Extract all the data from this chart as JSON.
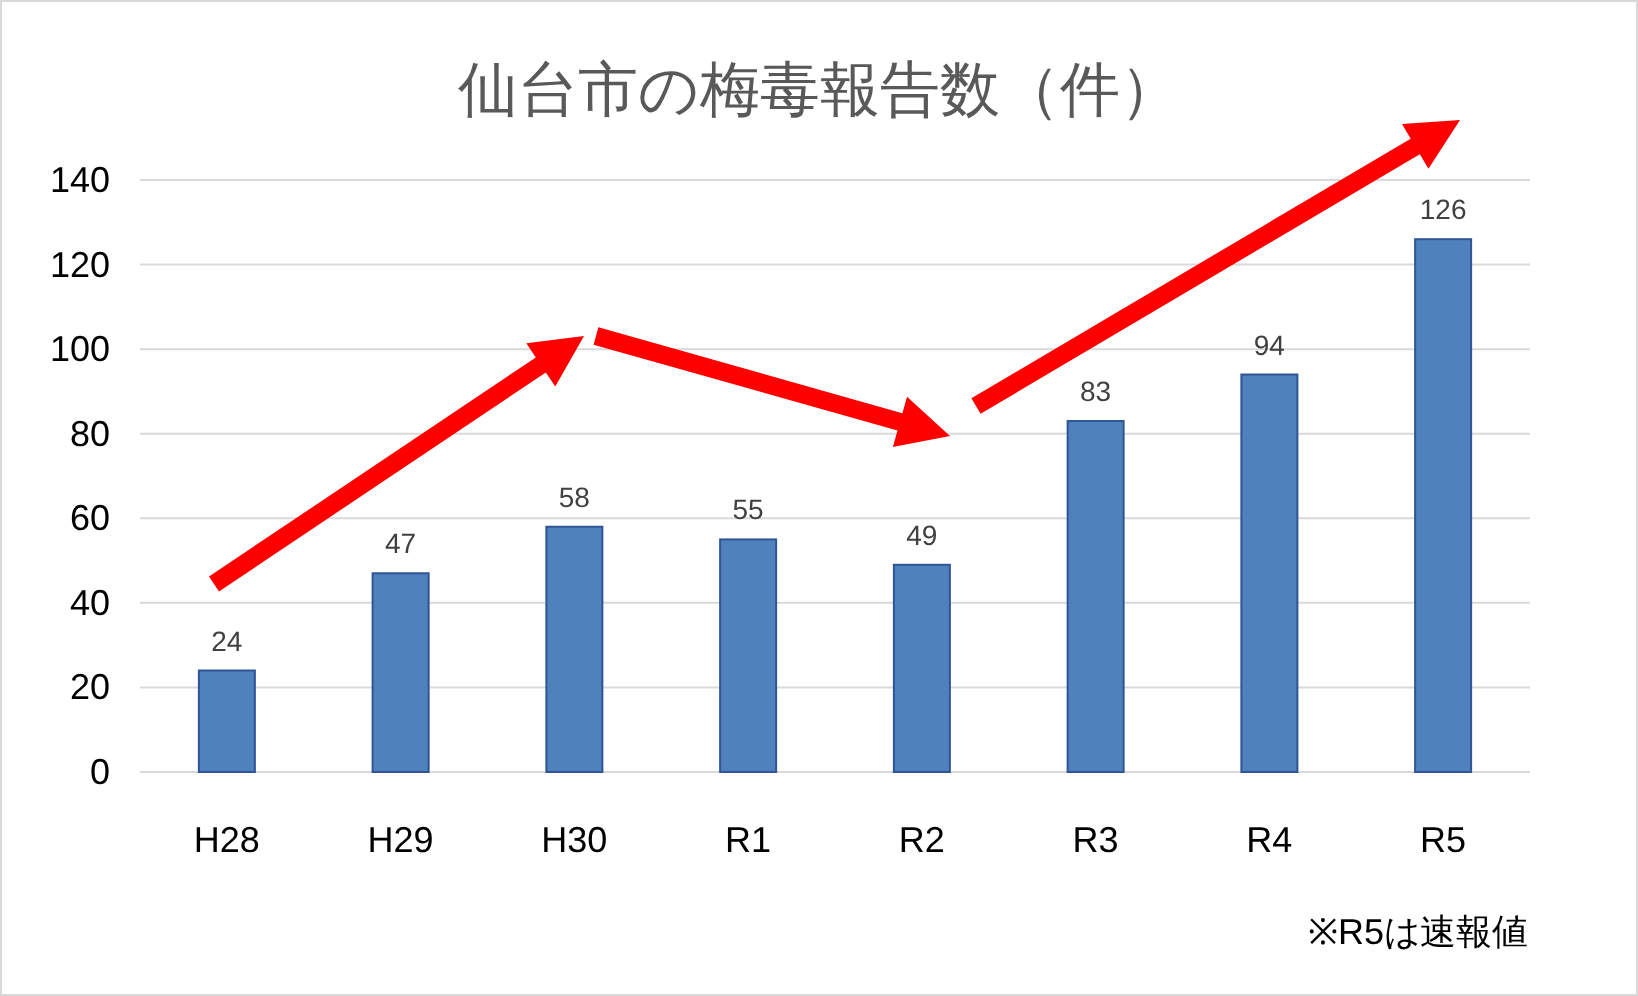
{
  "chart_data": {
    "type": "bar",
    "title": "仙台市の梅毒報告数（件）",
    "categories": [
      "H28",
      "H29",
      "H30",
      "R1",
      "R2",
      "R3",
      "R4",
      "R5"
    ],
    "values": [
      24,
      47,
      58,
      55,
      49,
      83,
      94,
      126
    ],
    "color": "#4f81bd",
    "ylim": [
      0,
      140
    ],
    "yticks": [
      0,
      20,
      40,
      60,
      80,
      100,
      120,
      140
    ],
    "grid": "y",
    "data_labels": true,
    "annotations": [
      "※R5は速報値"
    ]
  }
}
